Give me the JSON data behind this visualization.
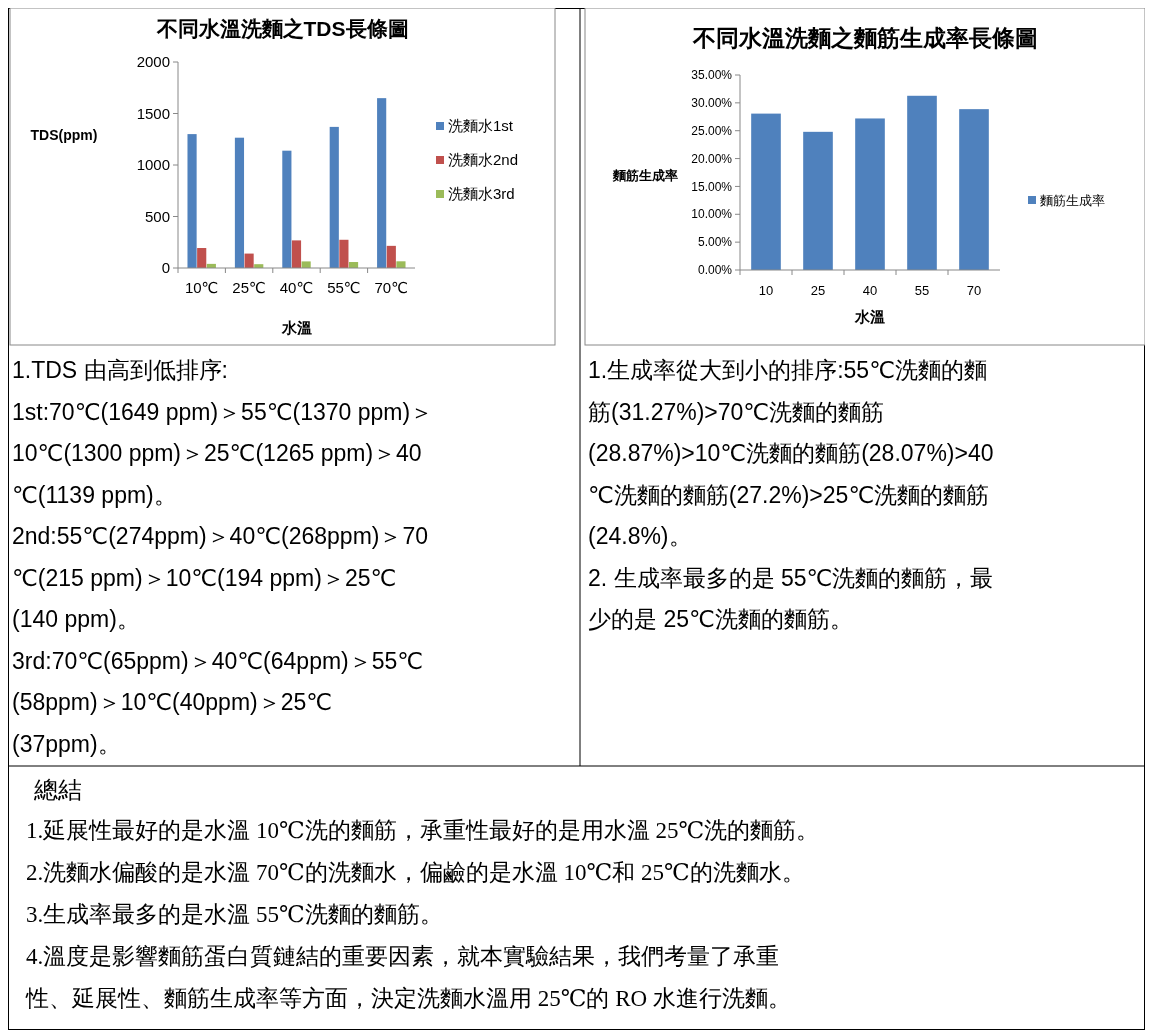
{
  "chart_data": [
    {
      "type": "bar",
      "title": "不同水溫洗麵之TDS長條圖",
      "xlabel": "水溫",
      "ylabel": "TDS(ppm)",
      "categories": [
        "10℃",
        "25℃",
        "40℃",
        "55℃",
        "70℃"
      ],
      "series": [
        {
          "name": "洗麵水1st",
          "color": "#4f81bd",
          "values": [
            1300,
            1265,
            1139,
            1370,
            1649
          ]
        },
        {
          "name": "洗麵水2nd",
          "color": "#c0504d",
          "values": [
            194,
            140,
            268,
            274,
            215
          ]
        },
        {
          "name": "洗麵水3rd",
          "color": "#9bbb59",
          "values": [
            40,
            37,
            64,
            58,
            65
          ]
        }
      ],
      "ylim": [
        0,
        2000
      ],
      "yticks": [
        0,
        500,
        1000,
        1500,
        2000
      ],
      "legend": "right",
      "annotations": [
        "1.TDS 由高到低排序:",
        "1st:70℃(1649 ppm)＞55℃(1370 ppm)＞",
        "10℃(1300 ppm)＞25℃(1265 ppm)＞40",
        "℃(1139 ppm)。",
        "2nd:55℃(274ppm)＞40℃(268ppm)＞70",
        "℃(215 ppm)＞10℃(194 ppm)＞25℃",
        "(140 ppm)。",
        "3rd:70℃(65ppm)＞40℃(64ppm)＞55℃",
        "(58ppm)＞10℃(40ppm)＞25℃",
        "(37ppm)。"
      ]
    },
    {
      "type": "bar",
      "title": "不同水溫洗麵之麵筋生成率長條圖",
      "xlabel": "水溫",
      "ylabel": "麵筋生成率",
      "categories": [
        "10",
        "25",
        "40",
        "55",
        "70"
      ],
      "series": [
        {
          "name": "麵筋生成率",
          "color": "#4f81bd",
          "values": [
            28.07,
            24.8,
            27.2,
            31.27,
            28.87
          ]
        }
      ],
      "ylim": [
        0,
        35
      ],
      "yticks": [
        {
          "value": 0,
          "label": "0.00%"
        },
        {
          "value": 5,
          "label": "5.00%"
        },
        {
          "value": 10,
          "label": "10.00%"
        },
        {
          "value": 15,
          "label": "15.00%"
        },
        {
          "value": 20,
          "label": "20.00%"
        },
        {
          "value": 25,
          "label": "25.00%"
        },
        {
          "value": 30,
          "label": "30.00%"
        },
        {
          "value": 35,
          "label": "35.00%"
        }
      ],
      "legend": "right",
      "annotations": [
        "1.生成率從大到小的排序:55℃洗麵的麵",
        "筋(31.27%)>70℃洗麵的麵筋",
        "(28.87%)>10℃洗麵的麵筋(28.07%)>40",
        "℃洗麵的麵筋(27.2%)>25℃洗麵的麵筋",
        "(24.8%)。",
        "2. 生成率最多的是 55℃洗麵的麵筋，最",
        "少的是 25℃洗麵的麵筋。"
      ]
    },
    {
      "type": "other",
      "title": "總結",
      "annotations": [
        "1.延展性最好的是水溫 10℃洗的麵筋，承重性最好的是用水溫 25℃洗的麵筋。",
        "2.洗麵水偏酸的是水溫 70℃的洗麵水，偏鹼的是水溫 10℃和 25℃的洗麵水。",
        "3.生成率最多的是水溫 55℃洗麵的麵筋。",
        "4.溫度是影響麵筋蛋白質鏈結的重要因素，就本實驗結果，我們考量了承重",
        "性、延展性、麵筋生成率等方面，決定洗麵水溫用 25℃的 RO 水進行洗麵。"
      ]
    }
  ]
}
